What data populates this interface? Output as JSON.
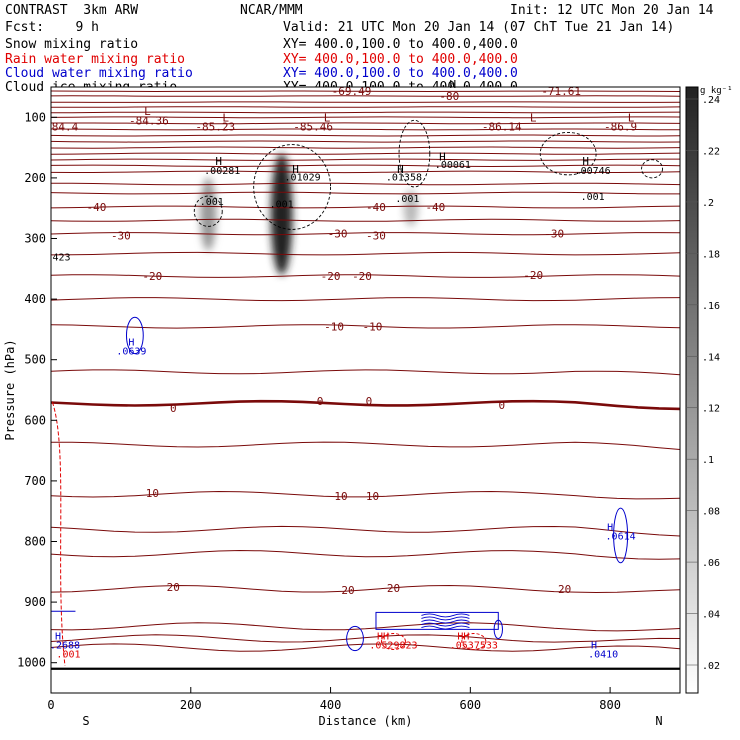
{
  "header": {
    "model": "CONTRAST  3km ARW",
    "org": "NCAR/MMM",
    "init": "Init: 12 UTC Mon 20 Jan 14",
    "fcst": "Fcst:    9 h",
    "valid": "Valid: 21 UTC Mon 20 Jan 14 (07 ChT Tue 21 Jan 14)"
  },
  "fields": [
    {
      "name": "Snow mixing ratio",
      "xy": "XY= 400.0,100.0 to 400.0,400.0",
      "color": "#000000"
    },
    {
      "name": "Rain water mixing ratio",
      "xy": "XY= 400.0,100.0 to 400.0,400.0",
      "color": "#e00000"
    },
    {
      "name": "Cloud water mixing ratio",
      "xy": "XY= 400.0,100.0 to 400.0,400.0",
      "color": "#0000cc"
    },
    {
      "name": "Cloud ice mixing ratio",
      "xy": "XY= 400.0,100.0 to 400.0,400.0",
      "color": "#000000"
    }
  ],
  "colorbar": {
    "unit": "g kg⁻¹",
    "ticks": [
      ".02",
      ".04",
      ".06",
      ".08",
      ".1",
      ".12",
      ".14",
      ".16",
      ".18",
      ".2",
      ".22",
      ".24"
    ]
  },
  "chart_data": {
    "type": "heatmap",
    "xlabel": "Distance (km)",
    "ylabel": "Pressure (hPa)",
    "xlim": [
      0,
      900
    ],
    "ylim": [
      1050,
      50
    ],
    "xticks": [
      "0",
      "200",
      "400",
      "600",
      "800"
    ],
    "yticks": [
      "100",
      "200",
      "300",
      "400",
      "500",
      "600",
      "700",
      "800",
      "900",
      "1000"
    ],
    "x_end_labels": {
      "left": "S",
      "right": "N"
    },
    "snow_shading": [
      {
        "x": 225,
        "p_top": 200,
        "p_bottom": 320,
        "peak": 0.1
      },
      {
        "x": 330,
        "p_top": 160,
        "p_bottom": 360,
        "peak": 0.24
      },
      {
        "x": 515,
        "p_top": 220,
        "p_bottom": 280,
        "peak": 0.06
      }
    ],
    "temperature_labels": [
      {
        "text": "-69.49",
        "x": 430,
        "p": 57
      },
      {
        "text": "-80",
        "x": 570,
        "p": 65
      },
      {
        "text": "-71.61",
        "x": 730,
        "p": 57
      },
      {
        "text": "84.4",
        "x": 20,
        "p": 115
      },
      {
        "text": "-84.36",
        "x": 140,
        "p": 105
      },
      {
        "text": "-85.23",
        "x": 235,
        "p": 115
      },
      {
        "text": "-85.46",
        "x": 375,
        "p": 115
      },
      {
        "text": "-86.14",
        "x": 645,
        "p": 115
      },
      {
        "text": "-86.9",
        "x": 815,
        "p": 115
      },
      {
        "text": "-40",
        "x": 65,
        "p": 248
      },
      {
        "text": "-40",
        "x": 465,
        "p": 248
      },
      {
        "text": "-40",
        "x": 550,
        "p": 248
      },
      {
        "text": "-30",
        "x": 100,
        "p": 295
      },
      {
        "text": "-30",
        "x": 410,
        "p": 292
      },
      {
        "text": "-30",
        "x": 465,
        "p": 295
      },
      {
        "text": "-30",
        "x": 720,
        "p": 292
      },
      {
        "text": "-20",
        "x": 145,
        "p": 362
      },
      {
        "text": "-20",
        "x": 400,
        "p": 362
      },
      {
        "text": "-20",
        "x": 445,
        "p": 362
      },
      {
        "text": "-20",
        "x": 690,
        "p": 360
      },
      {
        "text": "-10",
        "x": 405,
        "p": 445
      },
      {
        "text": "-10",
        "x": 460,
        "p": 445
      },
      {
        "text": "0",
        "x": 175,
        "p": 580
      },
      {
        "text": "0",
        "x": 385,
        "p": 568
      },
      {
        "text": "0",
        "x": 455,
        "p": 568
      },
      {
        "text": "0",
        "x": 645,
        "p": 575
      },
      {
        "text": "10",
        "x": 145,
        "p": 720
      },
      {
        "text": "10",
        "x": 415,
        "p": 725
      },
      {
        "text": "10",
        "x": 460,
        "p": 725
      },
      {
        "text": "20",
        "x": 175,
        "p": 875
      },
      {
        "text": "20",
        "x": 425,
        "p": 880
      },
      {
        "text": "20",
        "x": 490,
        "p": 877
      },
      {
        "text": "20",
        "x": 735,
        "p": 878
      }
    ],
    "isotherm_levels": [
      -80,
      -70,
      -60,
      -50,
      -40,
      -30,
      -20,
      -10,
      0,
      10,
      20
    ],
    "black_markers": [
      {
        "text": "L",
        "x": 138,
        "p": 90
      },
      {
        "text": "L",
        "x": 250,
        "p": 100
      },
      {
        "text": "L",
        "x": 395,
        "p": 100
      },
      {
        "text": "L",
        "x": 690,
        "p": 100
      },
      {
        "text": "L",
        "x": 830,
        "p": 100
      },
      {
        "text": "H",
        "x": 575,
        "p": 45
      },
      {
        "text": "H",
        "x": 240,
        "p": 172
      },
      {
        "text": "H",
        "x": 350,
        "p": 185
      },
      {
        "text": "H",
        "x": 500,
        "p": 185
      },
      {
        "text": "H",
        "x": 560,
        "p": 165
      },
      {
        "text": "H",
        "x": 765,
        "p": 172
      }
    ],
    "ice_max_labels": [
      {
        "text": ".00281",
        "x": 245,
        "p": 187
      },
      {
        "text": ".01029",
        "x": 360,
        "p": 198
      },
      {
        "text": ".01358",
        "x": 505,
        "p": 198
      },
      {
        "text": ".00061",
        "x": 575,
        "p": 177
      },
      {
        "text": ".00746",
        "x": 775,
        "p": 187
      },
      {
        "text": ".001",
        "x": 230,
        "p": 238
      },
      {
        "text": ".001",
        "x": 330,
        "p": 242
      },
      {
        "text": ".001",
        "x": 510,
        "p": 233
      },
      {
        "text": ".001",
        "x": 775,
        "p": 230
      }
    ],
    "left_edge_label": {
      "text": "423",
      "x": 15,
      "p": 330
    },
    "cloud_water_labels": [
      {
        "text": "H",
        "x": 115,
        "p": 470
      },
      {
        "text": ".0639",
        "x": 115,
        "p": 485
      },
      {
        "text": "H",
        "x": 800,
        "p": 775
      },
      {
        "text": ".0614",
        "x": 815,
        "p": 790
      },
      {
        "text": "H",
        "x": 10,
        "p": 955
      },
      {
        "text": ".2688",
        "x": 20,
        "p": 970
      },
      {
        "text": "H",
        "x": 777,
        "p": 970
      },
      {
        "text": ".0410",
        "x": 790,
        "p": 985
      }
    ],
    "rain_labels": [
      {
        "text": ".001",
        "x": 25,
        "p": 985
      },
      {
        "text": "HH",
        "x": 475,
        "p": 955
      },
      {
        "text": ".0529823",
        "x": 490,
        "p": 970
      },
      {
        "text": "HH",
        "x": 590,
        "p": 955
      },
      {
        "text": ".0537533",
        "x": 605,
        "p": 970
      }
    ]
  }
}
